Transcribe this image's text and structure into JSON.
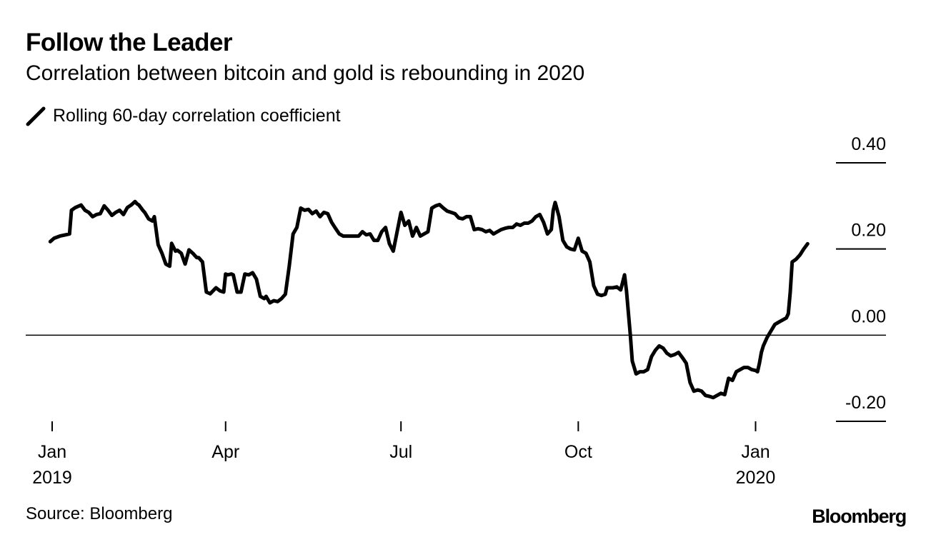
{
  "title": "Follow the Leader",
  "subtitle": "Correlation between bitcoin and gold is rebounding in 2020",
  "legend_label": "Rolling 60-day correlation coefficient",
  "source": "Source: Bloomberg",
  "brand": "Bloomberg",
  "colors": {
    "line": "#000000",
    "axis": "#000000",
    "background": "#ffffff"
  },
  "chart_data": {
    "type": "line",
    "title": "Follow the Leader",
    "subtitle": "Correlation between bitcoin and gold is rebounding in 2020",
    "xlabel": "",
    "ylabel": "",
    "ylim": [
      -0.2,
      0.4
    ],
    "yticks": [
      {
        "value": 0.4,
        "label": "0.40"
      },
      {
        "value": 0.2,
        "label": "0.20"
      },
      {
        "value": 0.0,
        "label": "0.00"
      },
      {
        "value": -0.2,
        "label": "-0.20"
      }
    ],
    "xlim": [
      0,
      393
    ],
    "xticks": [
      {
        "day": 0,
        "label": "Jan",
        "sublabel": "2019"
      },
      {
        "day": 90,
        "label": "Apr",
        "sublabel": ""
      },
      {
        "day": 181,
        "label": "Jul",
        "sublabel": ""
      },
      {
        "day": 273,
        "label": "Oct",
        "sublabel": ""
      },
      {
        "day": 365,
        "label": "Jan",
        "sublabel": "2020"
      }
    ],
    "grid": false,
    "zero_line": true,
    "legend": "top-left",
    "series": [
      {
        "name": "Rolling 60-day correlation coefficient",
        "x": [
          -1,
          1,
          4,
          7,
          9,
          10,
          12,
          14,
          15,
          17,
          19,
          21,
          23,
          25,
          27,
          29,
          31,
          33,
          35,
          37,
          39,
          41,
          43,
          44,
          45,
          47,
          48,
          50,
          52,
          53,
          55,
          57,
          59,
          61,
          62,
          64,
          65,
          67,
          69,
          71,
          73,
          75,
          76,
          78,
          80,
          82,
          85,
          87,
          89,
          90,
          91,
          93,
          94,
          96,
          98,
          100,
          102,
          104,
          106,
          108,
          110,
          111,
          113,
          115,
          117,
          119,
          121,
          123,
          125,
          127,
          129,
          131,
          133,
          135,
          137,
          139,
          141,
          143,
          145,
          147,
          149,
          151,
          153,
          155,
          157,
          159,
          161,
          163,
          165,
          167,
          169,
          171,
          173,
          175,
          177,
          179,
          181,
          183,
          185,
          187,
          189,
          191,
          193,
          195,
          197,
          199,
          201,
          203,
          205,
          207,
          209,
          211,
          213,
          215,
          217,
          219,
          221,
          223,
          225,
          227,
          229,
          231,
          233,
          235,
          237,
          239,
          241,
          243,
          245,
          247,
          249,
          251,
          253,
          255,
          257,
          259,
          260,
          261,
          263,
          265,
          267,
          269,
          271,
          273,
          275,
          277,
          279,
          281,
          283,
          285,
          287,
          288,
          289,
          291,
          293,
          295,
          297,
          298,
          300,
          301,
          303,
          305,
          307,
          309,
          311,
          313,
          315,
          317,
          319,
          321,
          323,
          325,
          327,
          329,
          331,
          333,
          335,
          337,
          339,
          341,
          343,
          345,
          347,
          349,
          351,
          353,
          355,
          357,
          359,
          361,
          363,
          365,
          366,
          367,
          368,
          369,
          370,
          371,
          373,
          375,
          377,
          379,
          381,
          382,
          383,
          384,
          386,
          388,
          390,
          392
        ],
        "y": [
          0.217,
          0.225,
          0.23,
          0.233,
          0.235,
          0.29,
          0.296,
          0.3,
          0.302,
          0.29,
          0.285,
          0.275,
          0.28,
          0.282,
          0.3,
          0.29,
          0.278,
          0.285,
          0.29,
          0.28,
          0.296,
          0.302,
          0.31,
          0.305,
          0.302,
          0.29,
          0.285,
          0.27,
          0.265,
          0.275,
          0.21,
          0.19,
          0.165,
          0.16,
          0.213,
          0.195,
          0.197,
          0.19,
          0.165,
          0.198,
          0.19,
          0.18,
          0.18,
          0.17,
          0.1,
          0.096,
          0.11,
          0.103,
          0.1,
          0.142,
          0.14,
          0.142,
          0.14,
          0.1,
          0.1,
          0.142,
          0.14,
          0.145,
          0.13,
          0.09,
          0.085,
          0.09,
          0.075,
          0.08,
          0.078,
          0.085,
          0.095,
          0.16,
          0.235,
          0.25,
          0.295,
          0.29,
          0.292,
          0.282,
          0.288,
          0.275,
          0.285,
          0.282,
          0.262,
          0.248,
          0.235,
          0.23,
          0.23,
          0.23,
          0.23,
          0.23,
          0.24,
          0.233,
          0.235,
          0.22,
          0.22,
          0.24,
          0.25,
          0.212,
          0.195,
          0.24,
          0.285,
          0.255,
          0.265,
          0.23,
          0.25,
          0.23,
          0.235,
          0.24,
          0.295,
          0.3,
          0.303,
          0.295,
          0.288,
          0.285,
          0.282,
          0.272,
          0.27,
          0.275,
          0.275,
          0.245,
          0.247,
          0.245,
          0.24,
          0.243,
          0.235,
          0.24,
          0.245,
          0.248,
          0.25,
          0.25,
          0.258,
          0.255,
          0.26,
          0.26,
          0.265,
          0.275,
          0.28,
          0.262,
          0.235,
          0.245,
          0.29,
          0.308,
          0.275,
          0.22,
          0.205,
          0.2,
          0.198,
          0.225,
          0.195,
          0.19,
          0.17,
          0.115,
          0.095,
          0.092,
          0.095,
          0.11,
          0.11,
          0.11,
          0.112,
          0.105,
          0.14,
          0.103,
          0.0,
          -0.06,
          -0.09,
          -0.085,
          -0.085,
          -0.08,
          -0.05,
          -0.035,
          -0.025,
          -0.03,
          -0.042,
          -0.048,
          -0.045,
          -0.04,
          -0.052,
          -0.065,
          -0.11,
          -0.13,
          -0.127,
          -0.13,
          -0.14,
          -0.142,
          -0.145,
          -0.14,
          -0.135,
          -0.138,
          -0.1,
          -0.105,
          -0.085,
          -0.08,
          -0.075,
          -0.075,
          -0.08,
          -0.082,
          -0.085,
          -0.065,
          -0.04,
          -0.025,
          -0.015,
          -0.005,
          0.01,
          0.025,
          0.03,
          0.035,
          0.04,
          0.05,
          0.1,
          0.17,
          0.176,
          0.186,
          0.2,
          0.212
        ]
      }
    ]
  }
}
